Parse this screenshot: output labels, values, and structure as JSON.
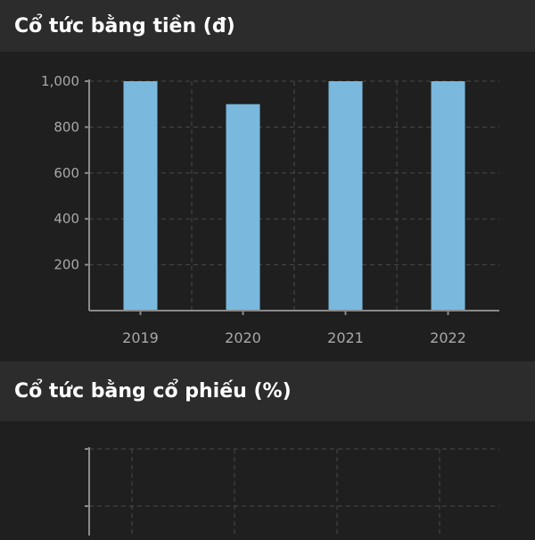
{
  "sections": [
    {
      "title": "Cổ tức bằng tiền (đ)"
    },
    {
      "title": "Cổ tức bằng cổ phiếu (%)"
    }
  ],
  "chart_data": [
    {
      "type": "bar",
      "title": "Cổ tức bằng tiền (đ)",
      "categories": [
        "2019",
        "2020",
        "2021",
        "2022"
      ],
      "values": [
        1000,
        900,
        1000,
        1000
      ],
      "ylim": [
        0,
        1000
      ],
      "yticks": [
        200,
        400,
        600,
        800,
        1000
      ],
      "ytick_labels": [
        "200",
        "400",
        "600",
        "800",
        "1,000"
      ],
      "grid": true,
      "bar_color": "#7ab8dd",
      "grid_color": "#4a4a4a",
      "axis_color": "#8a8a8a",
      "label_color": "#a8a8a8"
    },
    {
      "type": "bar",
      "title": "Cổ tức bằng cổ phiếu (%)",
      "categories": [],
      "values": [],
      "grid": true
    }
  ]
}
